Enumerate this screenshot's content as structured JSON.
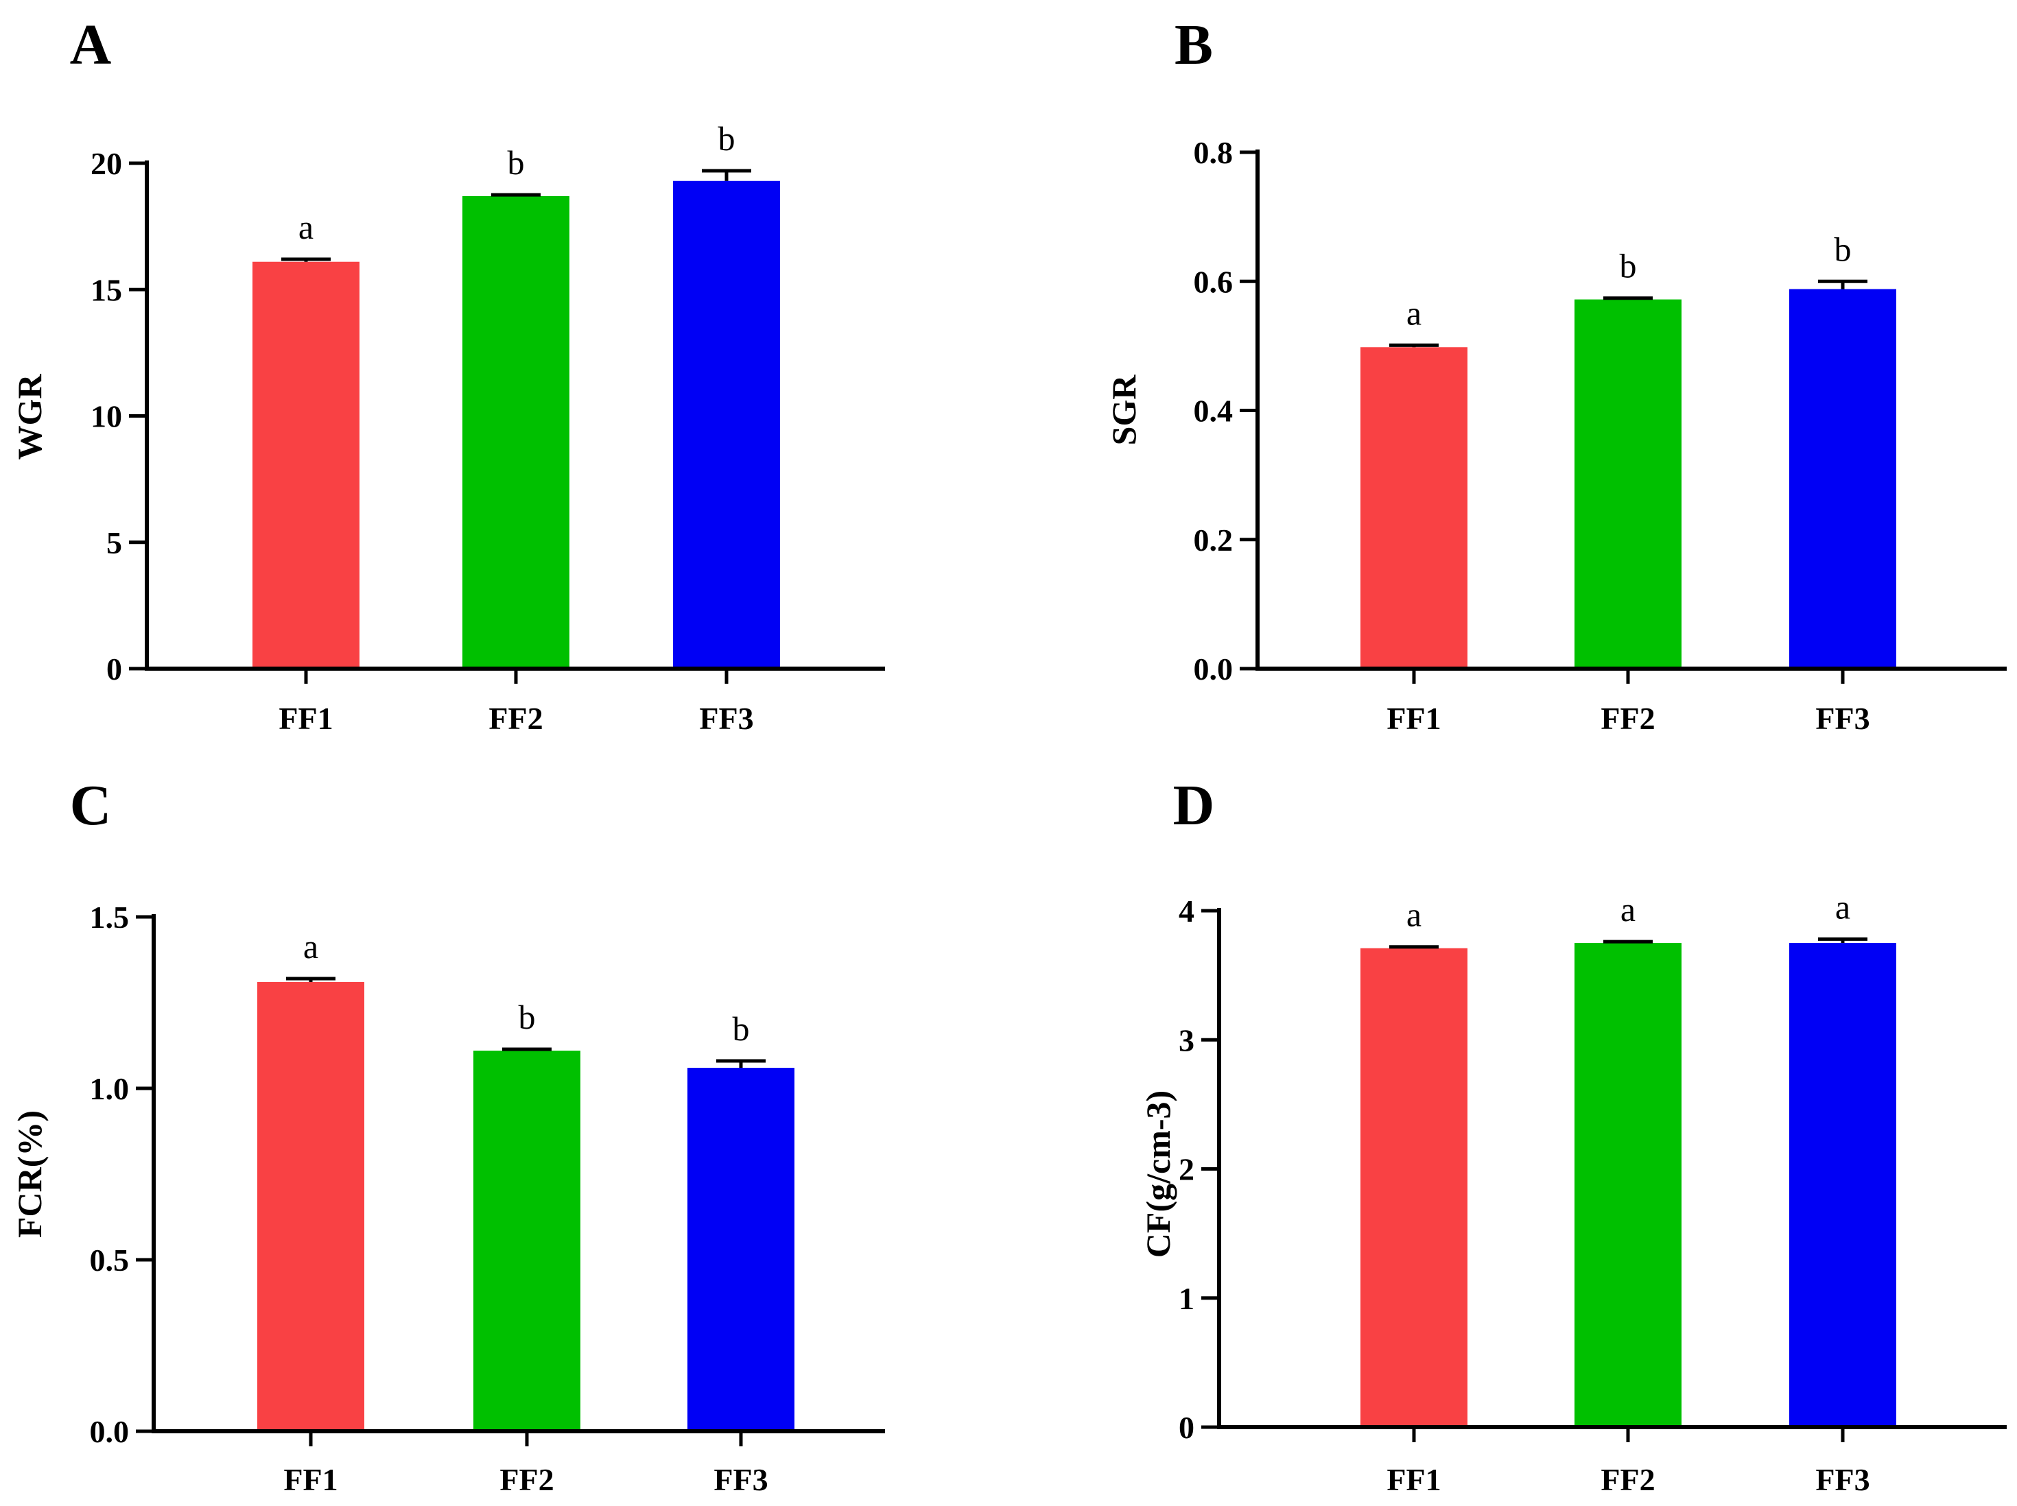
{
  "colors": {
    "FF1": "#f94144",
    "FF2": "#00c000",
    "FF3": "#0000f5",
    "axis": "#000000"
  },
  "chart_data": [
    {
      "type": "bar",
      "panel": "A",
      "ylabel": "WGR",
      "categories": [
        "FF1",
        "FF2",
        "FF3"
      ],
      "values": [
        16.1,
        18.7,
        19.3
      ],
      "errors": [
        0.1,
        0.05,
        0.4
      ],
      "significance": [
        "a",
        "b",
        "b"
      ],
      "ylim": [
        0,
        20
      ],
      "yticks": [
        0,
        5,
        10,
        15,
        20
      ],
      "ytick_labels": [
        "0",
        "5",
        "10",
        "15",
        "20"
      ]
    },
    {
      "type": "bar",
      "panel": "B",
      "ylabel": "SGR",
      "categories": [
        "FF1",
        "FF2",
        "FF3"
      ],
      "values": [
        0.498,
        0.572,
        0.588
      ],
      "errors": [
        0.003,
        0.002,
        0.012
      ],
      "significance": [
        "a",
        "b",
        "b"
      ],
      "ylim": [
        0,
        0.8
      ],
      "yticks": [
        0,
        0.2,
        0.4,
        0.6,
        0.8
      ],
      "ytick_labels": [
        "0.0",
        "0.2",
        "0.4",
        "0.6",
        "0.8"
      ]
    },
    {
      "type": "bar",
      "panel": "C",
      "ylabel": "FCR(%)",
      "categories": [
        "FF1",
        "FF2",
        "FF3"
      ],
      "values": [
        1.31,
        1.11,
        1.06
      ],
      "errors": [
        0.01,
        0.004,
        0.02
      ],
      "significance": [
        "a",
        "b",
        "b"
      ],
      "ylim": [
        0,
        1.5
      ],
      "yticks": [
        0,
        0.5,
        1.0,
        1.5
      ],
      "ytick_labels": [
        "0.0",
        "0.5",
        "1.0",
        "1.5"
      ]
    },
    {
      "type": "bar",
      "panel": "D",
      "ylabel": "CF(g/cm-3)",
      "categories": [
        "FF1",
        "FF2",
        "FF3"
      ],
      "values": [
        3.71,
        3.75,
        3.75
      ],
      "errors": [
        0.01,
        0.01,
        0.03
      ],
      "significance": [
        "a",
        "a",
        "a"
      ],
      "ylim": [
        0,
        4
      ],
      "yticks": [
        0,
        1,
        2,
        3,
        4
      ],
      "ytick_labels": [
        "0",
        "1",
        "2",
        "3",
        "4"
      ]
    }
  ]
}
